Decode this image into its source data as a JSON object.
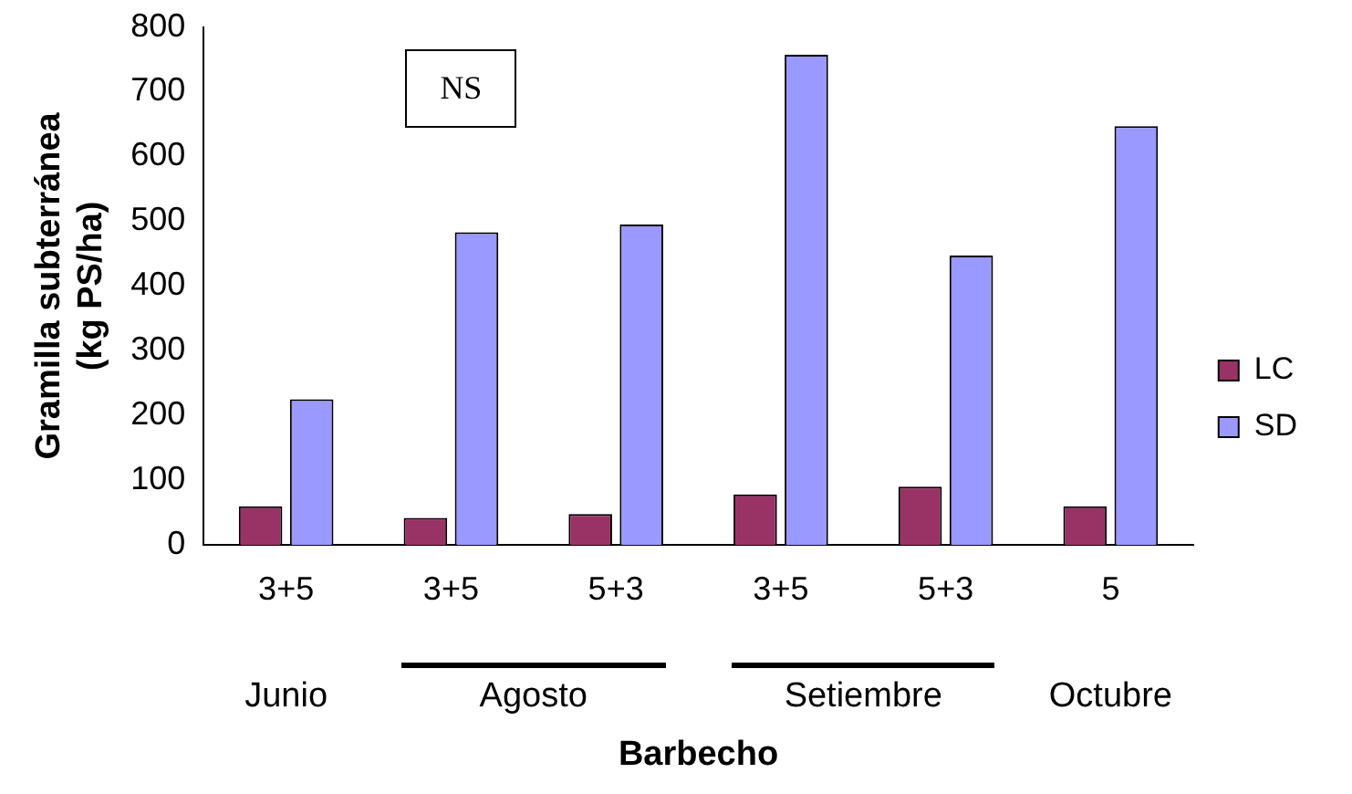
{
  "chart_data": {
    "type": "bar",
    "xlabel": "Barbecho",
    "ylabel": "Gramilla subterránea\n(kg PS/ha)",
    "categories": [
      "3+5",
      "3+5",
      "5+3",
      "3+5",
      "5+3",
      "5"
    ],
    "series": [
      {
        "name": "LC",
        "color": "#993366",
        "values": [
          60,
          42,
          48,
          78,
          90,
          60
        ]
      },
      {
        "name": "SD",
        "color": "#9999ff",
        "values": [
          225,
          483,
          495,
          757,
          447,
          647
        ]
      }
    ],
    "ylim": [
      0,
      800
    ],
    "yticks": [
      0,
      100,
      200,
      300,
      400,
      500,
      600,
      700,
      800
    ],
    "grid": false,
    "legend": "right",
    "annotations": [
      "NS",
      "Junio",
      "Agosto",
      "Setiembre",
      "Octubre"
    ]
  }
}
